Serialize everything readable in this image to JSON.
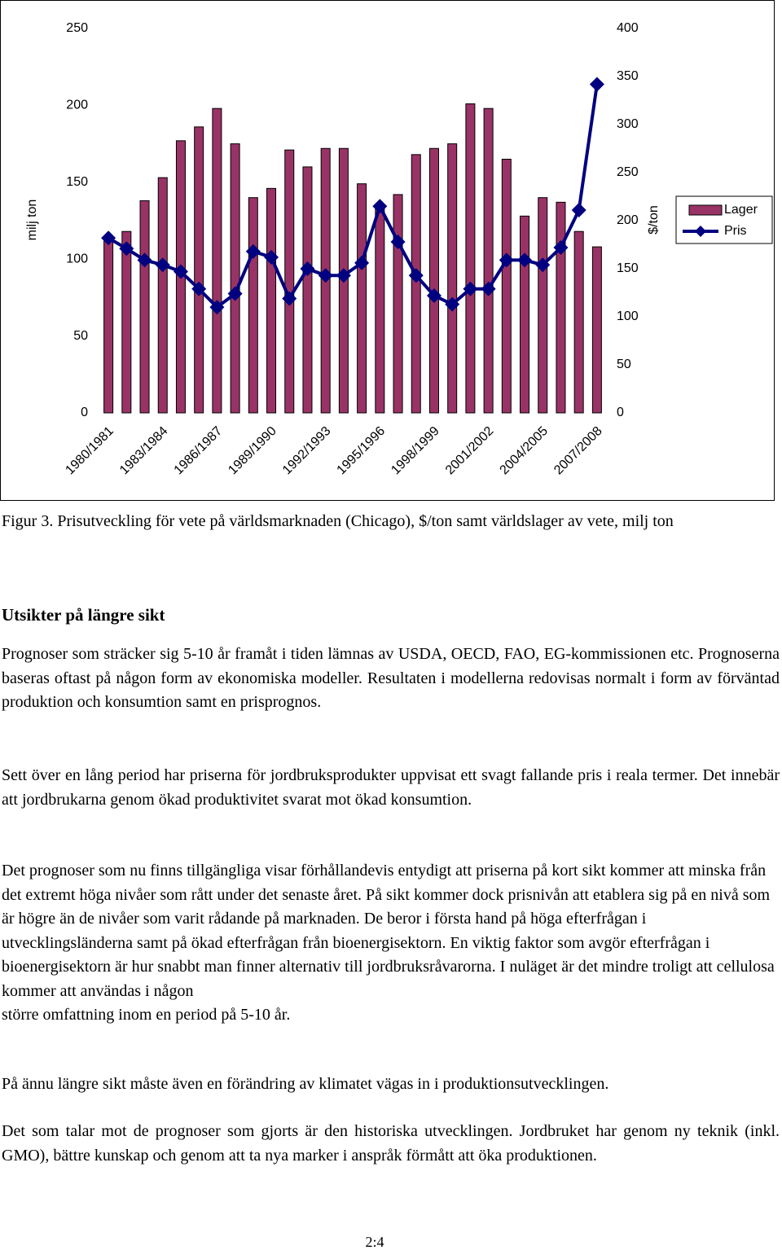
{
  "chart_data": {
    "type": "bar",
    "y_label": "milj ton",
    "y2_label": "$/ton",
    "categories": [
      "1980/1981",
      null,
      null,
      "1983/1984",
      null,
      null,
      "1986/1987",
      null,
      null,
      "1989/1990",
      null,
      null,
      "1992/1993",
      null,
      null,
      "1995/1996",
      null,
      null,
      "1998/1999",
      null,
      null,
      "2001/2002",
      null,
      null,
      "2004/2005",
      null,
      null,
      "2007/2008"
    ],
    "series": [
      {
        "name": "Lager",
        "type": "bar",
        "color": "#993366",
        "values": [
          113,
          118,
          138,
          153,
          177,
          186,
          198,
          175,
          140,
          146,
          171,
          160,
          172,
          172,
          149,
          135,
          142,
          168,
          172,
          175,
          201,
          198,
          165,
          128,
          140,
          137,
          118,
          108
        ]
      },
      {
        "name": "Pris",
        "type": "line",
        "axis": "y2",
        "color": "#000080",
        "values": [
          182,
          171,
          159,
          154,
          147,
          129,
          110,
          124,
          168,
          162,
          119,
          150,
          143,
          143,
          156,
          215,
          178,
          143,
          122,
          113,
          129,
          129,
          159,
          159,
          154,
          172,
          211,
          342
        ]
      }
    ],
    "ylim": [
      0,
      250
    ],
    "yticks": [
      0,
      50,
      100,
      150,
      200,
      250
    ],
    "y2lim": [
      0,
      400
    ],
    "y2ticks": [
      0,
      50,
      100,
      150,
      200,
      250,
      300,
      350,
      400
    ],
    "legend": "right"
  },
  "document": {
    "caption": "Figur 3. Prisutveckling för vete på världsmarknaden (Chicago), $/ton samt världslager av vete, milj ton",
    "heading": "Utsikter på längre sikt",
    "paragraphs": [
      [
        "Prognoser som sträcker sig 5-10 år framåt i tiden lämnas av USDA, OECD, FAO, EG-kommissionen etc. Prognoserna baseras oftast på någon form av ekonomiska modeller. Resultaten i modellerna redovisas normalt i form av förväntad produktion och konsumtion samt en prisprognos."
      ],
      [
        "Sett över en lång period har priserna för jordbruksprodukter uppvisat ett svagt fallande pris i reala termer. Det innebär att jordbrukarna genom ökad produktivitet svarat mot ökad konsumtion."
      ],
      [
        "Det prognoser som nu finns tillgängliga visar förhållandevis entydigt att priserna på kort sikt kommer att minska från det extremt höga nivåer som rått under det senaste året. På sikt kommer dock prisnivån att etablera sig på en nivå som är högre än de nivåer som varit rådande på marknaden. De beror i första hand på höga efterfrågan i utvecklingsländerna samt på ökad efterfrågan från bioenergisektorn. En viktig faktor som avgör efterfrågan i bioenergisektorn är hur snabbt man finner alternativ till jordbruksråvarorna. I nuläget är det mindre troligt att cellulosa kommer att användas i någon",
        "större omfattning inom en period på 5-10 år."
      ],
      [
        "På ännu längre sikt måste även en förändring av klimatet vägas in i produktionsutvecklingen."
      ],
      [
        "Det som talar mot de prognoser som gjorts är den historiska utvecklingen. Jordbruket har genom ny teknik (inkl. GMO), bättre kunskap och genom att ta nya marker i anspråk förmått att öka produktionen."
      ]
    ],
    "page_number": "2:4"
  }
}
